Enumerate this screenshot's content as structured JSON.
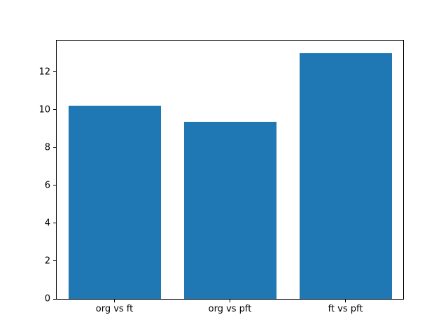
{
  "chart_data": {
    "type": "bar",
    "title": "",
    "xlabel": "",
    "ylabel": "",
    "categories": [
      "org vs ft",
      "org vs pft",
      "ft vs pft"
    ],
    "values": [
      10.2,
      9.35,
      13.0
    ],
    "ylim": [
      0,
      13.65
    ],
    "yticks": [
      0,
      2,
      4,
      6,
      8,
      10,
      12
    ],
    "bar_color": "#1f77b4",
    "bar_width_fraction": 0.8,
    "grid": false,
    "legend": "none",
    "background_color": "#ffffff",
    "axis_color": "#000000"
  }
}
